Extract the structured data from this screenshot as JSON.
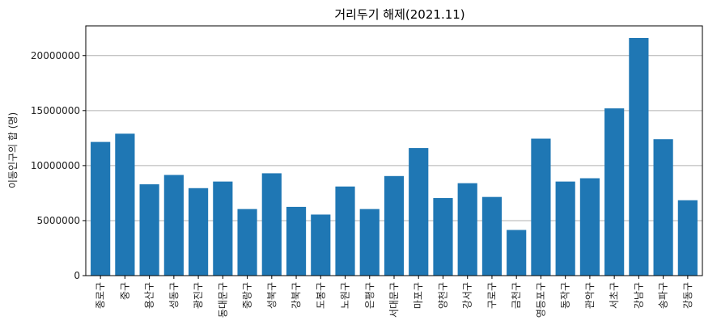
{
  "chart_data": {
    "type": "bar",
    "title": "거리두기 해제(2021.11)",
    "xlabel": "",
    "ylabel": "이동인구의 합 (명)",
    "categories": [
      "종로구",
      "중구",
      "용산구",
      "성동구",
      "광진구",
      "동대문구",
      "중랑구",
      "성북구",
      "강북구",
      "도봉구",
      "노원구",
      "은평구",
      "서대문구",
      "마포구",
      "양천구",
      "강서구",
      "구로구",
      "금천구",
      "영등포구",
      "동작구",
      "관악구",
      "서초구",
      "강남구",
      "송파구",
      "강동구"
    ],
    "values": [
      12150000,
      12900000,
      8300000,
      9150000,
      7950000,
      8550000,
      6050000,
      9300000,
      6250000,
      5550000,
      8100000,
      6050000,
      9050000,
      11600000,
      7050000,
      8400000,
      7150000,
      4150000,
      12450000,
      8550000,
      8850000,
      15200000,
      21600000,
      12400000,
      6850000
    ],
    "ylim": [
      0,
      22700000
    ],
    "yticks": [
      "0",
      "5000000",
      "10000000",
      "15000000",
      "20000000"
    ],
    "ytick_values": [
      0,
      5000000,
      10000000,
      15000000,
      20000000
    ],
    "grid": "y",
    "colors": {
      "bar": "#1f77b4",
      "grid": "#b0b0b0",
      "axis": "#000000"
    }
  }
}
